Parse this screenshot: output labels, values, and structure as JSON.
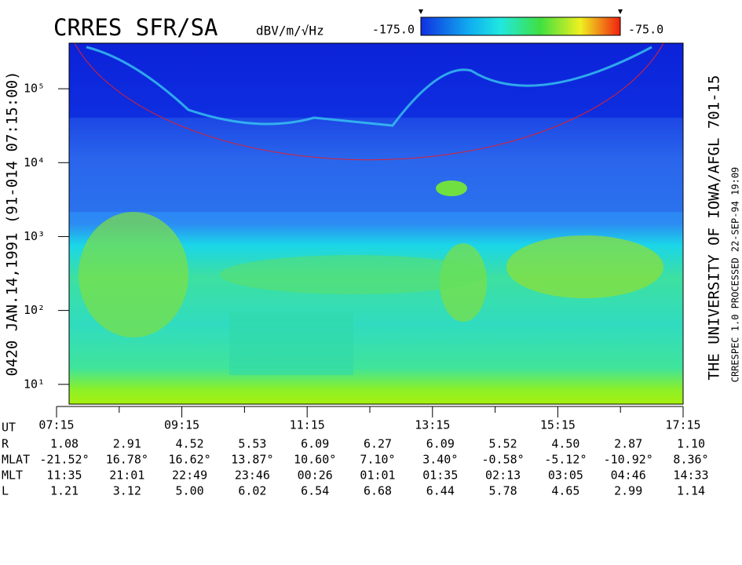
{
  "chart_data": {
    "type": "spectrogram",
    "title": "CRRES SFR/SA",
    "colorbar_label": "dBV/m/√Hz",
    "colorbar_ticks": [
      {
        "value": -175,
        "label": "-175.0"
      },
      {
        "value": -75,
        "label": "-75.0"
      }
    ],
    "y_label": "0420  JAN.14,1991  (91-014 07:15:00)",
    "right_label": "THE UNIVERSITY OF IOWA/AFGL 701-15",
    "right_sublabel": "CRRESPEC 1.0   PROCESSED 22-SEP-94  19:09",
    "log_y": true,
    "ylim": [
      5.4,
      414000
    ],
    "yticks": [
      {
        "value": 10,
        "label": "10¹"
      },
      {
        "value": 100,
        "label": "10²"
      },
      {
        "value": 1000,
        "label": "10³"
      },
      {
        "value": 10000,
        "label": "10⁴"
      },
      {
        "value": 100000,
        "label": "10⁵"
      }
    ],
    "xlim": [
      7.25,
      17.25
    ],
    "xticks": [
      {
        "value": 7.25,
        "label": "07:15"
      },
      {
        "value": 9.25,
        "label": "09:15"
      },
      {
        "value": 11.25,
        "label": "11:15"
      },
      {
        "value": 13.25,
        "label": "13:15"
      },
      {
        "value": 15.25,
        "label": "15:15"
      },
      {
        "value": 17.25,
        "label": "17:15"
      }
    ],
    "xminor_ticks": [
      8.25,
      10.25,
      12.25,
      14.25,
      16.25
    ],
    "ephemeris": {
      "header": "UT",
      "rows": [
        {
          "label": "R",
          "values": [
            "1.08",
            "2.91",
            "4.52",
            "5.53",
            "6.09",
            "6.27",
            "6.09",
            "5.52",
            "4.50",
            "2.87",
            "1.10"
          ]
        },
        {
          "label": "MLAT",
          "values": [
            "-21.52°",
            "16.78°",
            "16.62°",
            "13.87°",
            "10.60°",
            "7.10°",
            "3.40°",
            "-0.58°",
            "-5.12°",
            "-10.92°",
            "8.36°"
          ]
        },
        {
          "label": "MLT",
          "values": [
            "11:35",
            "21:01",
            "22:49",
            "23:46",
            "00:26",
            "01:01",
            "01:35",
            "02:13",
            "03:05",
            "04:46",
            "14:33"
          ]
        },
        {
          "label": "L",
          "values": [
            "1.21",
            "3.12",
            "5.00",
            "6.02",
            "6.54",
            "6.68",
            "6.44",
            "5.78",
            "4.65",
            "2.99",
            "1.14"
          ]
        }
      ]
    }
  }
}
